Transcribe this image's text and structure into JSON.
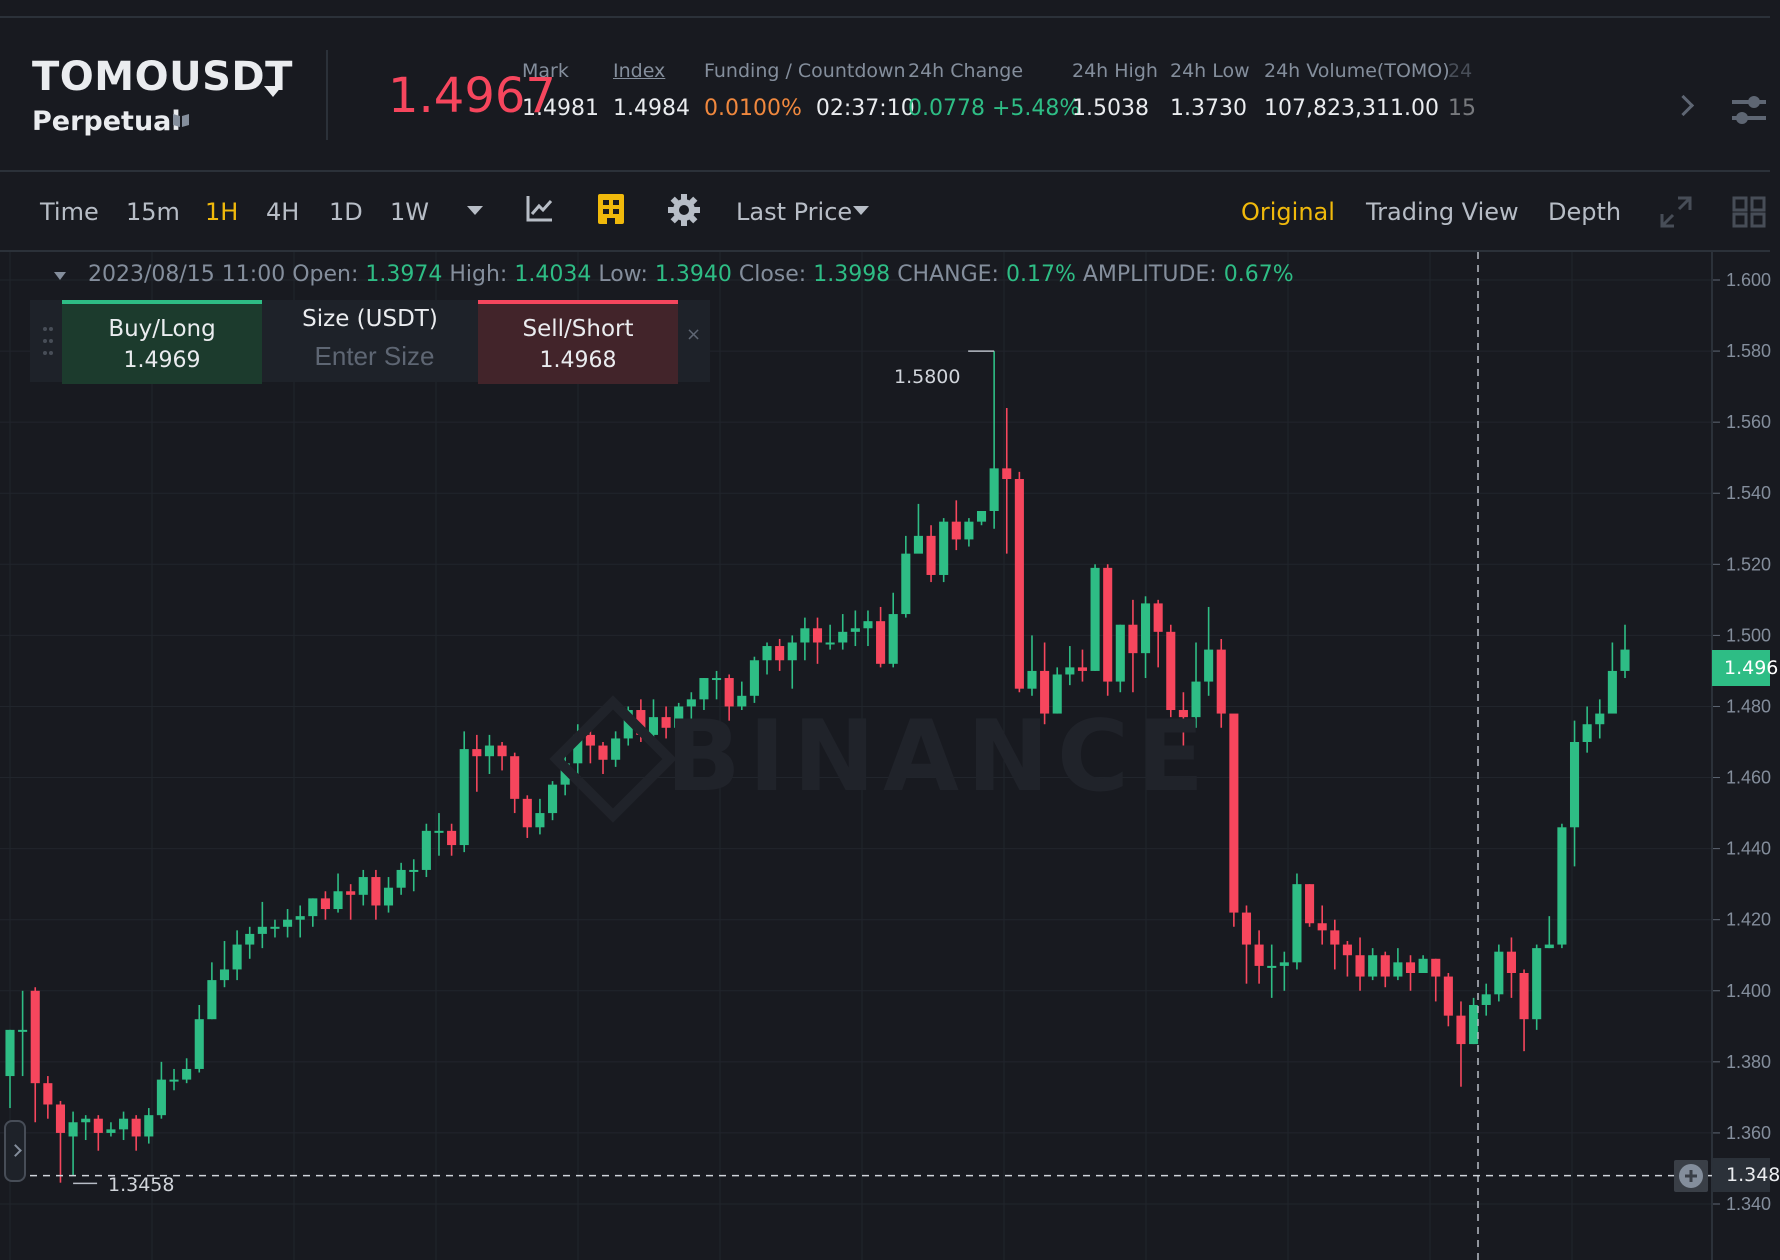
{
  "header": {
    "symbol": "TOMOUSDT",
    "contract_type": "Perpetual",
    "last_price": "1.4967",
    "stats": [
      {
        "label": "Mark",
        "value": "1.4981"
      },
      {
        "label": "Index",
        "value": "1.4984"
      },
      {
        "label": "Funding / Countdown",
        "value": "0.0100%",
        "value2": "02:37:10"
      },
      {
        "label": "24h Change",
        "value": "0.0778 +5.48%"
      },
      {
        "label": "24h High",
        "value": "1.5038"
      },
      {
        "label": "24h Low",
        "value": "1.3730"
      },
      {
        "label": "24h Volume(TOMO)",
        "value": "107,823,311.00"
      },
      {
        "label": "24",
        "value": "15"
      }
    ]
  },
  "toolbar": {
    "time_label": "Time",
    "intervals": [
      "15m",
      "1H",
      "4H",
      "1D",
      "1W"
    ],
    "active_interval": "1H",
    "price_type": "Last Price",
    "views": [
      "Original",
      "Trading View",
      "Depth"
    ],
    "active_view": "Original"
  },
  "ohlc": {
    "date": "2023/08/15 11:00",
    "open_label": "Open:",
    "open": "1.3974",
    "high_label": "High:",
    "high": "1.4034",
    "low_label": "Low:",
    "low": "1.3940",
    "close_label": "Close:",
    "close": "1.3998",
    "change_label": "CHANGE:",
    "change": "0.17%",
    "amplitude_label": "AMPLITUDE:",
    "amplitude": "0.67%"
  },
  "order_panel": {
    "buy_label": "Buy/Long",
    "buy_price": "1.4969",
    "size_label": "Size (USDT)",
    "size_placeholder": "Enter Size",
    "sell_label": "Sell/Short",
    "sell_price": "1.4968",
    "close_glyph": "×"
  },
  "chart": {
    "watermark": "BINANCE",
    "high_marker": "1.5800",
    "low_marker": "1.3458",
    "last_price_tag": "1.496",
    "crosshair_price_tag": "1.348",
    "y_ticks": [
      "1.600",
      "1.580",
      "1.560",
      "1.540",
      "1.520",
      "1.500",
      "1.480",
      "1.460",
      "1.440",
      "1.420",
      "1.400",
      "1.380",
      "1.360",
      "1.340"
    ],
    "colors": {
      "up": "#2ebd85",
      "down": "#f6465d",
      "accent": "#f0b90b"
    }
  },
  "chart_data": {
    "type": "candlestick",
    "ylim": [
      1.34,
      1.6
    ],
    "candles": [
      [
        1.376,
        1.389,
        1.367,
        1.389
      ],
      [
        1.389,
        1.389,
        1.376,
        1.4
      ],
      [
        1.4,
        1.374,
        1.363,
        1.401
      ],
      [
        1.374,
        1.368,
        1.364,
        1.376
      ],
      [
        1.368,
        1.36,
        1.346,
        1.369
      ],
      [
        1.359,
        1.363,
        1.348,
        1.366
      ],
      [
        1.363,
        1.364,
        1.358,
        1.365
      ],
      [
        1.364,
        1.36,
        1.355,
        1.365
      ],
      [
        1.36,
        1.361,
        1.359,
        1.363
      ],
      [
        1.361,
        1.364,
        1.358,
        1.366
      ],
      [
        1.364,
        1.359,
        1.355,
        1.365
      ],
      [
        1.359,
        1.365,
        1.357,
        1.367
      ],
      [
        1.365,
        1.375,
        1.364,
        1.38
      ],
      [
        1.375,
        1.375,
        1.372,
        1.378
      ],
      [
        1.375,
        1.378,
        1.374,
        1.381
      ],
      [
        1.378,
        1.392,
        1.377,
        1.396
      ],
      [
        1.392,
        1.403,
        1.392,
        1.408
      ],
      [
        1.403,
        1.406,
        1.401,
        1.414
      ],
      [
        1.406,
        1.413,
        1.403,
        1.417
      ],
      [
        1.413,
        1.416,
        1.409,
        1.418
      ],
      [
        1.416,
        1.418,
        1.412,
        1.425
      ],
      [
        1.418,
        1.418,
        1.415,
        1.42
      ],
      [
        1.418,
        1.42,
        1.415,
        1.423
      ],
      [
        1.42,
        1.421,
        1.415,
        1.424
      ],
      [
        1.421,
        1.426,
        1.418,
        1.426
      ],
      [
        1.426,
        1.423,
        1.42,
        1.428
      ],
      [
        1.423,
        1.428,
        1.422,
        1.433
      ],
      [
        1.428,
        1.427,
        1.42,
        1.43
      ],
      [
        1.427,
        1.432,
        1.424,
        1.434
      ],
      [
        1.432,
        1.424,
        1.42,
        1.434
      ],
      [
        1.424,
        1.429,
        1.422,
        1.432
      ],
      [
        1.429,
        1.434,
        1.427,
        1.436
      ],
      [
        1.434,
        1.434,
        1.428,
        1.437
      ],
      [
        1.434,
        1.445,
        1.432,
        1.447
      ],
      [
        1.445,
        1.445,
        1.438,
        1.45
      ],
      [
        1.445,
        1.441,
        1.438,
        1.447
      ],
      [
        1.441,
        1.468,
        1.439,
        1.473
      ],
      [
        1.468,
        1.466,
        1.456,
        1.472
      ],
      [
        1.466,
        1.469,
        1.461,
        1.472
      ],
      [
        1.469,
        1.466,
        1.462,
        1.47
      ],
      [
        1.466,
        1.454,
        1.45,
        1.467
      ],
      [
        1.454,
        1.446,
        1.443,
        1.455
      ],
      [
        1.446,
        1.45,
        1.444,
        1.454
      ],
      [
        1.45,
        1.458,
        1.448,
        1.459
      ],
      [
        1.458,
        1.464,
        1.455,
        1.466
      ],
      [
        1.464,
        1.472,
        1.46,
        1.475
      ],
      [
        1.472,
        1.469,
        1.464,
        1.474
      ],
      [
        1.469,
        1.465,
        1.461,
        1.47
      ],
      [
        1.465,
        1.471,
        1.463,
        1.473
      ],
      [
        1.471,
        1.479,
        1.469,
        1.48
      ],
      [
        1.479,
        1.472,
        1.47,
        1.482
      ],
      [
        1.472,
        1.477,
        1.47,
        1.482
      ],
      [
        1.477,
        1.474,
        1.471,
        1.48
      ],
      [
        1.474,
        1.48,
        1.472,
        1.481
      ],
      [
        1.48,
        1.482,
        1.476,
        1.484
      ],
      [
        1.482,
        1.488,
        1.479,
        1.488
      ],
      [
        1.488,
        1.488,
        1.482,
        1.49
      ],
      [
        1.488,
        1.48,
        1.476,
        1.489
      ],
      [
        1.48,
        1.483,
        1.479,
        1.487
      ],
      [
        1.483,
        1.493,
        1.481,
        1.494
      ],
      [
        1.493,
        1.497,
        1.489,
        1.498
      ],
      [
        1.497,
        1.493,
        1.49,
        1.499
      ],
      [
        1.493,
        1.498,
        1.485,
        1.5
      ],
      [
        1.498,
        1.502,
        1.493,
        1.505
      ],
      [
        1.502,
        1.498,
        1.492,
        1.505
      ],
      [
        1.498,
        1.498,
        1.496,
        1.503
      ],
      [
        1.498,
        1.501,
        1.496,
        1.506
      ],
      [
        1.501,
        1.502,
        1.497,
        1.507
      ],
      [
        1.502,
        1.504,
        1.497,
        1.507
      ],
      [
        1.504,
        1.492,
        1.491,
        1.508
      ],
      [
        1.492,
        1.506,
        1.491,
        1.512
      ],
      [
        1.506,
        1.523,
        1.505,
        1.528
      ],
      [
        1.523,
        1.528,
        1.524,
        1.537
      ],
      [
        1.528,
        1.517,
        1.515,
        1.531
      ],
      [
        1.517,
        1.532,
        1.515,
        1.533
      ],
      [
        1.532,
        1.527,
        1.524,
        1.538
      ],
      [
        1.527,
        1.532,
        1.525,
        1.533
      ],
      [
        1.532,
        1.535,
        1.531,
        1.535
      ],
      [
        1.535,
        1.547,
        1.53,
        1.58
      ],
      [
        1.547,
        1.544,
        1.523,
        1.564
      ],
      [
        1.544,
        1.485,
        1.484,
        1.546
      ],
      [
        1.485,
        1.49,
        1.483,
        1.5
      ],
      [
        1.49,
        1.478,
        1.475,
        1.498
      ],
      [
        1.478,
        1.489,
        1.478,
        1.491
      ],
      [
        1.489,
        1.491,
        1.486,
        1.497
      ],
      [
        1.491,
        1.49,
        1.487,
        1.496
      ],
      [
        1.49,
        1.519,
        1.49,
        1.52
      ],
      [
        1.519,
        1.487,
        1.483,
        1.52
      ],
      [
        1.487,
        1.503,
        1.484,
        1.503
      ],
      [
        1.503,
        1.495,
        1.484,
        1.51
      ],
      [
        1.495,
        1.509,
        1.488,
        1.511
      ],
      [
        1.509,
        1.501,
        1.491,
        1.51
      ],
      [
        1.501,
        1.479,
        1.477,
        1.503
      ],
      [
        1.479,
        1.477,
        1.467,
        1.484
      ],
      [
        1.477,
        1.487,
        1.474,
        1.498
      ],
      [
        1.487,
        1.496,
        1.483,
        1.508
      ],
      [
        1.496,
        1.478,
        1.474,
        1.499
      ],
      [
        1.478,
        1.422,
        1.418,
        1.476
      ],
      [
        1.422,
        1.413,
        1.402,
        1.424
      ],
      [
        1.413,
        1.407,
        1.402,
        1.417
      ],
      [
        1.407,
        1.407,
        1.398,
        1.413
      ],
      [
        1.407,
        1.408,
        1.4,
        1.411
      ],
      [
        1.408,
        1.43,
        1.406,
        1.433
      ],
      [
        1.43,
        1.419,
        1.418,
        1.43
      ],
      [
        1.419,
        1.417,
        1.413,
        1.424
      ],
      [
        1.417,
        1.413,
        1.406,
        1.42
      ],
      [
        1.413,
        1.41,
        1.404,
        1.414
      ],
      [
        1.41,
        1.404,
        1.4,
        1.415
      ],
      [
        1.404,
        1.41,
        1.403,
        1.412
      ],
      [
        1.41,
        1.404,
        1.401,
        1.411
      ],
      [
        1.404,
        1.408,
        1.403,
        1.412
      ],
      [
        1.408,
        1.405,
        1.4,
        1.41
      ],
      [
        1.405,
        1.409,
        1.405,
        1.41
      ],
      [
        1.409,
        1.404,
        1.397,
        1.409
      ],
      [
        1.404,
        1.393,
        1.39,
        1.405
      ],
      [
        1.393,
        1.385,
        1.373,
        1.397
      ],
      [
        1.385,
        1.396,
        1.385,
        1.398
      ],
      [
        1.396,
        1.399,
        1.393,
        1.402
      ],
      [
        1.399,
        1.411,
        1.397,
        1.413
      ],
      [
        1.411,
        1.405,
        1.398,
        1.415
      ],
      [
        1.405,
        1.392,
        1.383,
        1.406
      ],
      [
        1.392,
        1.412,
        1.389,
        1.413
      ],
      [
        1.412,
        1.413,
        1.412,
        1.421
      ],
      [
        1.413,
        1.446,
        1.412,
        1.447
      ],
      [
        1.446,
        1.47,
        1.435,
        1.476
      ],
      [
        1.47,
        1.475,
        1.467,
        1.48
      ],
      [
        1.475,
        1.478,
        1.471,
        1.482
      ],
      [
        1.478,
        1.49,
        1.479,
        1.498
      ],
      [
        1.49,
        1.496,
        1.488,
        1.503
      ]
    ]
  }
}
